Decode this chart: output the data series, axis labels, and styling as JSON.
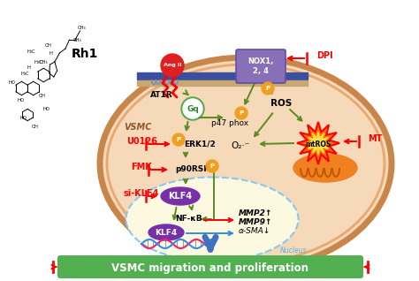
{
  "bg_color": "#ffffff",
  "cell_fill": "#f5d9b8",
  "cell_border_outer": "#c8864a",
  "cell_border_inner": "#e8a870",
  "outer_border": "#1a2580",
  "nucleus_fill": "#fdf9e0",
  "nucleus_border": "#85c8f0",
  "bottom_box_fill": "#52b050",
  "bottom_box_text": "VSMC migration and proliferation",
  "vsmc_label": "VSMC",
  "rh1_label": "Rh1",
  "ang_label": "Ang II",
  "at1r_label": "AT1R",
  "nox_label": "NOX1,\n2, 4",
  "dpi_label": "DPI",
  "gq_label": "Gq",
  "p47_label": "p47 phox",
  "ros_label": "ROS",
  "erk_label": "ERK1/2",
  "u0126_label": "U0126",
  "p90rsk_label": "p90RSK",
  "fmk_label": "FMK",
  "klf4_cyto_label": "KLF4",
  "si_klf4_label": "si-KLF4",
  "mtrос_label": "mtROS",
  "mt_label": "MT",
  "o2_label": "O₂·⁻",
  "nfkb_label": "NF-κB",
  "klf4_nuc_label": "KLF4",
  "mmp2_label": "MMP2↑",
  "mmp9_label": "MMP9↑",
  "asma_label": "α-SMA↓",
  "nucleus_label": "Nucleus",
  "p_label": "P",
  "membrane_color": "#3a4fa0",
  "green_arrow": "#5a8a20",
  "arrow_color_blue": "#4a80c8",
  "orange_p": "#f0a020"
}
